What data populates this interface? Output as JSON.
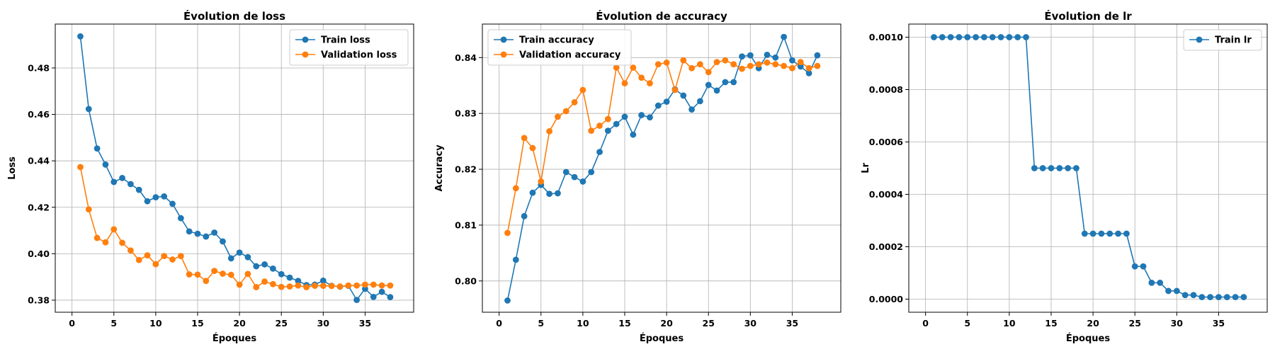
{
  "chart_data": [
    {
      "type": "line",
      "title": "Évolution de loss",
      "xlabel": "Époques",
      "ylabel": "Loss",
      "xlim": [
        -2,
        40.8
      ],
      "ylim": [
        0.3748,
        0.4989
      ],
      "xticks": [
        0,
        5,
        10,
        15,
        20,
        25,
        30,
        35
      ],
      "xtick_labels": [
        "0",
        "5",
        "10",
        "15",
        "20",
        "25",
        "30",
        "35"
      ],
      "yticks": [
        0.38,
        0.4,
        0.42,
        0.44,
        0.46,
        0.48
      ],
      "ytick_labels": [
        "0.38",
        "0.40",
        "0.42",
        "0.44",
        "0.46",
        "0.48"
      ],
      "grid": true,
      "legend_position": "top-right",
      "x": [
        1,
        2,
        3,
        4,
        5,
        6,
        7,
        8,
        9,
        10,
        11,
        12,
        13,
        14,
        15,
        16,
        17,
        18,
        19,
        20,
        21,
        22,
        23,
        24,
        25,
        26,
        27,
        28,
        29,
        30,
        31,
        32,
        33,
        34,
        35,
        36,
        37,
        38
      ],
      "series": [
        {
          "name": "Train loss",
          "color": "#1f77b4",
          "values": [
            0.4936,
            0.4623,
            0.4453,
            0.4384,
            0.4309,
            0.4326,
            0.43,
            0.4275,
            0.4226,
            0.4243,
            0.4247,
            0.4215,
            0.4153,
            0.4096,
            0.4086,
            0.4074,
            0.4091,
            0.4053,
            0.398,
            0.4005,
            0.3985,
            0.3946,
            0.3954,
            0.3936,
            0.3912,
            0.3897,
            0.3883,
            0.3865,
            0.3867,
            0.3884,
            0.3862,
            0.3858,
            0.3862,
            0.3801,
            0.3849,
            0.3814,
            0.3836,
            0.3813
          ]
        },
        {
          "name": "Validation loss",
          "color": "#ff7f0e",
          "values": [
            0.4373,
            0.4191,
            0.4068,
            0.4049,
            0.4105,
            0.4047,
            0.4014,
            0.3973,
            0.3993,
            0.3955,
            0.399,
            0.3975,
            0.399,
            0.3911,
            0.391,
            0.3883,
            0.3926,
            0.3914,
            0.3909,
            0.3867,
            0.3913,
            0.3856,
            0.388,
            0.3869,
            0.3857,
            0.3859,
            0.3863,
            0.3856,
            0.3862,
            0.3862,
            0.3861,
            0.3859,
            0.3863,
            0.3863,
            0.3867,
            0.3867,
            0.3863,
            0.3863
          ]
        }
      ]
    },
    {
      "type": "line",
      "title": "Évolution de accuracy",
      "xlabel": "Époques",
      "ylabel": "Accuracy",
      "xlim": [
        -2,
        40.8
      ],
      "ylim": [
        0.7944,
        0.846
      ],
      "xticks": [
        0,
        5,
        10,
        15,
        20,
        25,
        30,
        35
      ],
      "xtick_labels": [
        "0",
        "5",
        "10",
        "15",
        "20",
        "25",
        "30",
        "35"
      ],
      "yticks": [
        0.8,
        0.81,
        0.82,
        0.83,
        0.84
      ],
      "ytick_labels": [
        "0.80",
        "0.81",
        "0.82",
        "0.83",
        "0.84"
      ],
      "grid": true,
      "legend_position": "top-left",
      "x": [
        1,
        2,
        3,
        4,
        5,
        6,
        7,
        8,
        9,
        10,
        11,
        12,
        13,
        14,
        15,
        16,
        17,
        18,
        19,
        20,
        21,
        22,
        23,
        24,
        25,
        26,
        27,
        28,
        29,
        30,
        31,
        32,
        33,
        34,
        35,
        36,
        37,
        38
      ],
      "series": [
        {
          "name": "Train accuracy",
          "color": "#1f77b4",
          "values": [
            0.7965,
            0.8038,
            0.8116,
            0.8158,
            0.8172,
            0.8156,
            0.8157,
            0.8195,
            0.8186,
            0.8178,
            0.8195,
            0.8231,
            0.8269,
            0.8281,
            0.8294,
            0.8262,
            0.8297,
            0.8293,
            0.8314,
            0.8321,
            0.8343,
            0.8332,
            0.8307,
            0.8322,
            0.8351,
            0.8341,
            0.8356,
            0.8356,
            0.8402,
            0.8404,
            0.8381,
            0.8405,
            0.84,
            0.8437,
            0.8395,
            0.8384,
            0.8372,
            0.8404
          ]
        },
        {
          "name": "Validation accuracy",
          "color": "#ff7f0e",
          "values": [
            0.8086,
            0.8166,
            0.8256,
            0.8238,
            0.8178,
            0.8268,
            0.8294,
            0.8304,
            0.832,
            0.8342,
            0.8269,
            0.8278,
            0.829,
            0.8382,
            0.8354,
            0.8382,
            0.8364,
            0.8354,
            0.8388,
            0.8391,
            0.8342,
            0.8395,
            0.8381,
            0.8388,
            0.8374,
            0.8392,
            0.8395,
            0.8388,
            0.838,
            0.8385,
            0.8388,
            0.8391,
            0.8388,
            0.8385,
            0.8381,
            0.8392,
            0.8381,
            0.8385
          ]
        }
      ]
    },
    {
      "type": "line",
      "title": "Évolution de lr",
      "xlabel": "Époques",
      "ylabel": "Lr",
      "xlim": [
        -2,
        40.8
      ],
      "ylim": [
        -5e-05,
        0.00105
      ],
      "xticks": [
        0,
        5,
        10,
        15,
        20,
        25,
        30,
        35
      ],
      "xtick_labels": [
        "0",
        "5",
        "10",
        "15",
        "20",
        "25",
        "30",
        "35"
      ],
      "yticks": [
        0.0,
        0.0002,
        0.0004,
        0.0006,
        0.0008,
        0.001
      ],
      "ytick_labels": [
        "0.0000",
        "0.0002",
        "0.0004",
        "0.0006",
        "0.0008",
        "0.0010"
      ],
      "grid": true,
      "legend_position": "top-right",
      "x": [
        1,
        2,
        3,
        4,
        5,
        6,
        7,
        8,
        9,
        10,
        11,
        12,
        13,
        14,
        15,
        16,
        17,
        18,
        19,
        20,
        21,
        22,
        23,
        24,
        25,
        26,
        27,
        28,
        29,
        30,
        31,
        32,
        33,
        34,
        35,
        36,
        37,
        38
      ],
      "series": [
        {
          "name": "Train lr",
          "color": "#1f77b4",
          "values": [
            0.001,
            0.001,
            0.001,
            0.001,
            0.001,
            0.001,
            0.001,
            0.001,
            0.001,
            0.001,
            0.001,
            0.001,
            0.0005,
            0.0005,
            0.0005,
            0.0005,
            0.0005,
            0.0005,
            0.00025,
            0.00025,
            0.00025,
            0.00025,
            0.00025,
            0.00025,
            0.000125,
            0.000125,
            6.25e-05,
            6.25e-05,
            3.125e-05,
            3.125e-05,
            1.5625e-05,
            1.5625e-05,
            7.8125e-06,
            7.8125e-06,
            7.8125e-06,
            7.8125e-06,
            7.8125e-06,
            7.8125e-06
          ]
        }
      ]
    }
  ]
}
